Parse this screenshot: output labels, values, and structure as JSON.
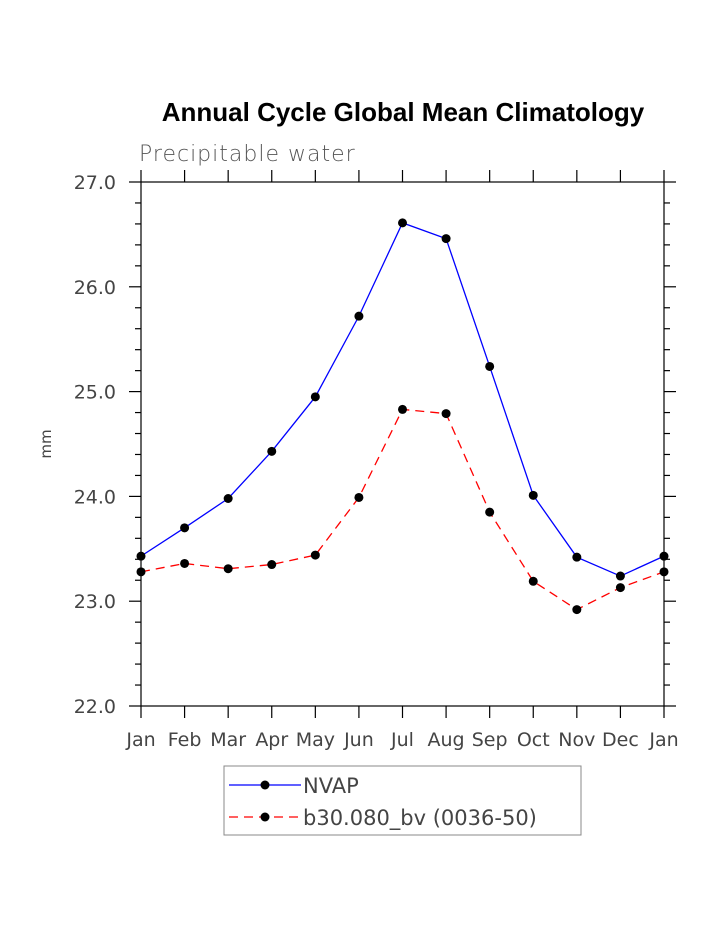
{
  "chart_data": {
    "type": "line",
    "title": "Annual Cycle Global Mean Climatology",
    "subtitle": "Precipitable water",
    "xlabel": "",
    "ylabel": "mm",
    "categories": [
      "Jan",
      "Feb",
      "Mar",
      "Apr",
      "May",
      "Jun",
      "Jul",
      "Aug",
      "Sep",
      "Oct",
      "Nov",
      "Dec",
      "Jan"
    ],
    "ylim": [
      22.0,
      27.0
    ],
    "yticks": [
      "22.0",
      "23.0",
      "24.0",
      "25.0",
      "26.0",
      "27.0"
    ],
    "grid": false,
    "legend_position": "bottom-center",
    "series": [
      {
        "name": "NVAP",
        "color": "#0000ff",
        "style": "solid",
        "values": [
          23.43,
          23.7,
          23.98,
          24.43,
          24.95,
          25.72,
          26.61,
          26.46,
          25.24,
          24.01,
          23.42,
          23.24,
          23.43
        ]
      },
      {
        "name": "b30.080_bv (0036-50)",
        "color": "#ff0000",
        "style": "dashed",
        "values": [
          23.28,
          23.36,
          23.31,
          23.35,
          23.44,
          23.99,
          24.83,
          24.79,
          23.85,
          23.19,
          22.92,
          23.13,
          23.28
        ]
      }
    ]
  }
}
